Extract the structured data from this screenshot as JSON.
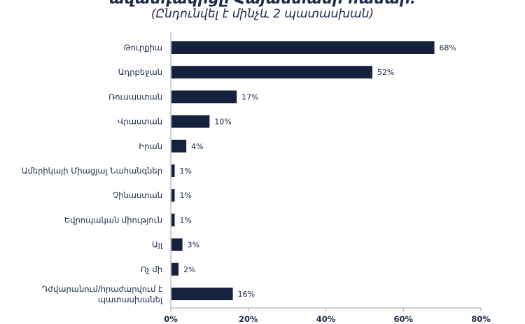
{
  "chart_data": {
    "type": "bar",
    "orientation": "horizontal",
    "title": "ավանդակիցը Հայաստանի համար:",
    "subtitle": "(Ընդունվել է մինչև 2 պատասխան)",
    "categories": [
      "Թուրքիա",
      "Ադրբեջան",
      "Ռուսաստան",
      "Վրաստան",
      "Իրան",
      "Ամերիկայի Միացյալ Նահանգներ",
      "Չինաստան",
      "Եվրոպական միություն",
      "Այլ",
      "Ոչ մի",
      "Դժվարանում/հրաժարվում է պատասխանել"
    ],
    "values": [
      68,
      52,
      17,
      10,
      4,
      1,
      1,
      1,
      3,
      2,
      16
    ],
    "value_labels": [
      "68%",
      "52%",
      "17%",
      "10%",
      "4%",
      "1%",
      "1%",
      "1%",
      "3%",
      "2%",
      "16%"
    ],
    "xlim": [
      0,
      80
    ],
    "xticks": [
      0,
      20,
      40,
      60,
      80
    ],
    "xtick_labels": [
      "0%",
      "20%",
      "40%",
      "60%",
      "80%"
    ],
    "grid": false,
    "bar_color": "#15213d"
  }
}
